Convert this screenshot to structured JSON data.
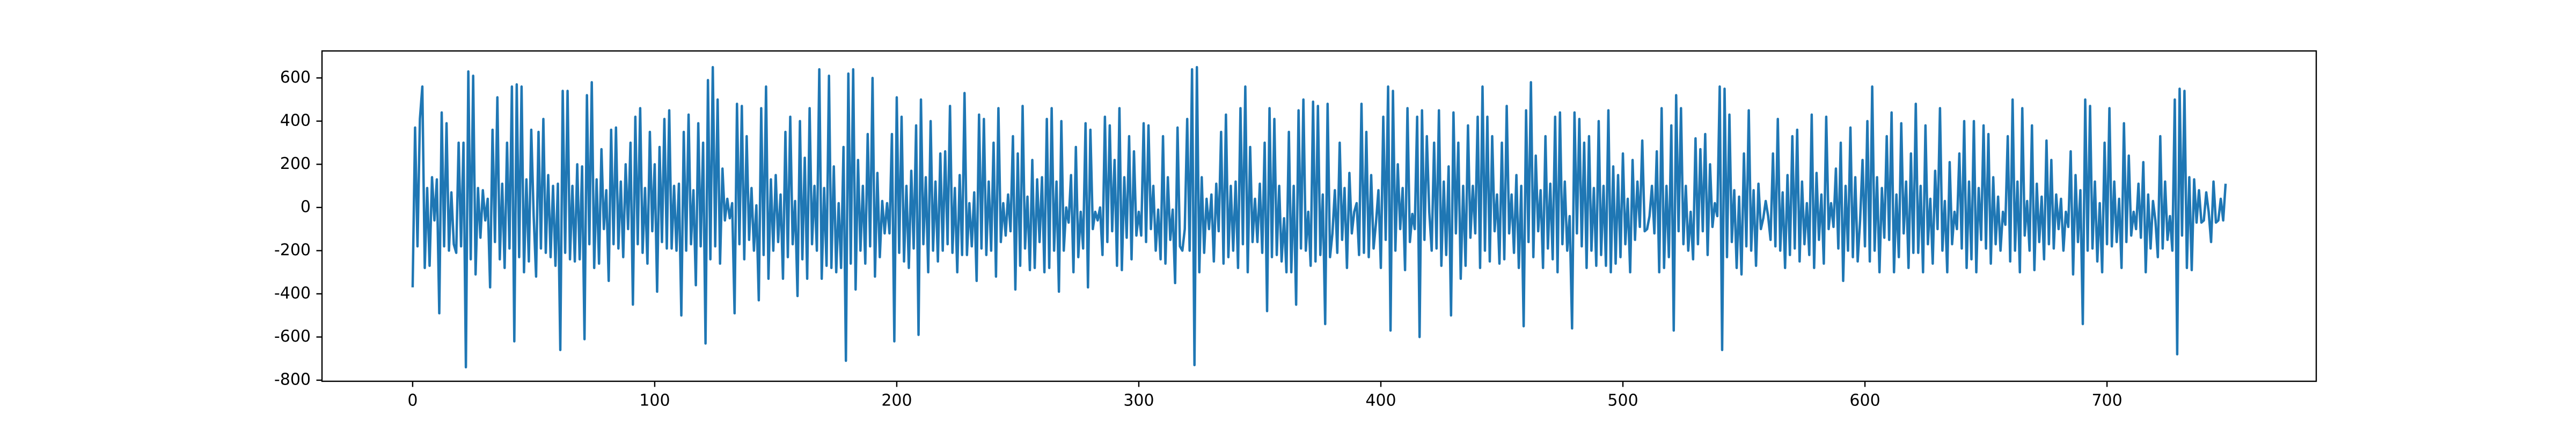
{
  "chart_data": {
    "type": "line",
    "color": "#1f77b4",
    "xlim": [
      -37.45,
      786.45
    ],
    "ylim": [
      -805,
      725
    ],
    "xticks": [
      0,
      100,
      200,
      300,
      400,
      500,
      600,
      700
    ],
    "yticks": [
      -800,
      -600,
      -400,
      -200,
      0,
      200,
      400,
      600
    ],
    "x": [
      0,
      1,
      2,
      3,
      4,
      5,
      6,
      7,
      8,
      9,
      10,
      11,
      12,
      13,
      14,
      15,
      16,
      17,
      18,
      19,
      20,
      21,
      22,
      23,
      24,
      25,
      26,
      27,
      28,
      29,
      30,
      31,
      32,
      33,
      34,
      35,
      36,
      37,
      38,
      39,
      40,
      41,
      42,
      43,
      44,
      45,
      46,
      47,
      48,
      49,
      50,
      51,
      52,
      53,
      54,
      55,
      56,
      57,
      58,
      59,
      60,
      61,
      62,
      63,
      64,
      65,
      66,
      67,
      68,
      69,
      70,
      71,
      72,
      73,
      74,
      75,
      76,
      77,
      78,
      79,
      80,
      81,
      82,
      83,
      84,
      85,
      86,
      87,
      88,
      89,
      90,
      91,
      92,
      93,
      94,
      95,
      96,
      97,
      98,
      99,
      100,
      101,
      102,
      103,
      104,
      105,
      106,
      107,
      108,
      109,
      110,
      111,
      112,
      113,
      114,
      115,
      116,
      117,
      118,
      119,
      120,
      121,
      122,
      123,
      124,
      125,
      126,
      127,
      128,
      129,
      130,
      131,
      132,
      133,
      134,
      135,
      136,
      137,
      138,
      139,
      140,
      141,
      142,
      143,
      144,
      145,
      146,
      147,
      148,
      149,
      150,
      151,
      152,
      153,
      154,
      155,
      156,
      157,
      158,
      159,
      160,
      161,
      162,
      163,
      164,
      165,
      166,
      167,
      168,
      169,
      170,
      171,
      172,
      173,
      174,
      175,
      176,
      177,
      178,
      179,
      180,
      181,
      182,
      183,
      184,
      185,
      186,
      187,
      188,
      189,
      190,
      191,
      192,
      193,
      194,
      195,
      196,
      197,
      198,
      199,
      200,
      201,
      202,
      203,
      204,
      205,
      206,
      207,
      208,
      209,
      210,
      211,
      212,
      213,
      214,
      215,
      216,
      217,
      218,
      219,
      220,
      221,
      222,
      223,
      224,
      225,
      226,
      227,
      228,
      229,
      230,
      231,
      232,
      233,
      234,
      235,
      236,
      237,
      238,
      239,
      240,
      241,
      242,
      243,
      244,
      245,
      246,
      247,
      248,
      249,
      250,
      251,
      252,
      253,
      254,
      255,
      256,
      257,
      258,
      259,
      260,
      261,
      262,
      263,
      264,
      265,
      266,
      267,
      268,
      269,
      270,
      271,
      272,
      273,
      274,
      275,
      276,
      277,
      278,
      279,
      280,
      281,
      282,
      283,
      284,
      285,
      286,
      287,
      288,
      289,
      290,
      291,
      292,
      293,
      294,
      295,
      296,
      297,
      298,
      299,
      300,
      301,
      302,
      303,
      304,
      305,
      306,
      307,
      308,
      309,
      310,
      311,
      312,
      313,
      314,
      315,
      316,
      317,
      318,
      319,
      320,
      321,
      322,
      323,
      324,
      325,
      326,
      327,
      328,
      329,
      330,
      331,
      332,
      333,
      334,
      335,
      336,
      337,
      338,
      339,
      340,
      341,
      342,
      343,
      344,
      345,
      346,
      347,
      348,
      349,
      350,
      351,
      352,
      353,
      354,
      355,
      356,
      357,
      358,
      359,
      360,
      361,
      362,
      363,
      364,
      365,
      366,
      367,
      368,
      369,
      370,
      371,
      372,
      373,
      374,
      375,
      376,
      377,
      378,
      379,
      380,
      381,
      382,
      383,
      384,
      385,
      386,
      387,
      388,
      389,
      390,
      391,
      392,
      393,
      394,
      395,
      396,
      397,
      398,
      399,
      400,
      401,
      402,
      403,
      404,
      405,
      406,
      407,
      408,
      409,
      410,
      411,
      412,
      413,
      414,
      415,
      416,
      417,
      418,
      419,
      420,
      421,
      422,
      423,
      424,
      425,
      426,
      427,
      428,
      429,
      430,
      431,
      432,
      433,
      434,
      435,
      436,
      437,
      438,
      439,
      440,
      441,
      442,
      443,
      444,
      445,
      446,
      447,
      448,
      449,
      450,
      451,
      452,
      453,
      454,
      455,
      456,
      457,
      458,
      459,
      460,
      461,
      462,
      463,
      464,
      465,
      466,
      467,
      468,
      469,
      470,
      471,
      472,
      473,
      474,
      475,
      476,
      477,
      478,
      479,
      480,
      481,
      482,
      483,
      484,
      485,
      486,
      487,
      488,
      489,
      490,
      491,
      492,
      493,
      494,
      495,
      496,
      497,
      498,
      499,
      500,
      501,
      502,
      503,
      504,
      505,
      506,
      507,
      508,
      509,
      510,
      511,
      512,
      513,
      514,
      515,
      516,
      517,
      518,
      519,
      520,
      521,
      522,
      523,
      524,
      525,
      526,
      527,
      528,
      529,
      530,
      531,
      532,
      533,
      534,
      535,
      536,
      537,
      538,
      539,
      540,
      541,
      542,
      543,
      544,
      545,
      546,
      547,
      548,
      549,
      550,
      551,
      552,
      553,
      554,
      555,
      556,
      557,
      558,
      559,
      560,
      561,
      562,
      563,
      564,
      565,
      566,
      567,
      568,
      569,
      570,
      571,
      572,
      573,
      574,
      575,
      576,
      577,
      578,
      579,
      580,
      581,
      582,
      583,
      584,
      585,
      586,
      587,
      588,
      589,
      590,
      591,
      592,
      593,
      594,
      595,
      596,
      597,
      598,
      599,
      600,
      601,
      602,
      603,
      604,
      605,
      606,
      607,
      608,
      609,
      610,
      611,
      612,
      613,
      614,
      615,
      616,
      617,
      618,
      619,
      620,
      621,
      622,
      623,
      624,
      625,
      626,
      627,
      628,
      629,
      630,
      631,
      632,
      633,
      634,
      635,
      636,
      637,
      638,
      639,
      640,
      641,
      642,
      643,
      644,
      645,
      646,
      647,
      648,
      649,
      650,
      651,
      652,
      653,
      654,
      655,
      656,
      657,
      658,
      659,
      660,
      661,
      662,
      663,
      664,
      665,
      666,
      667,
      668,
      669,
      670,
      671,
      672,
      673,
      674,
      675,
      676,
      677,
      678,
      679,
      680,
      681,
      682,
      683,
      684,
      685,
      686,
      687,
      688,
      689,
      690,
      691,
      692,
      693,
      694,
      695,
      696,
      697,
      698,
      699,
      700,
      701,
      702,
      703,
      704,
      705,
      706,
      707,
      708,
      709,
      710,
      711,
      712,
      713,
      714,
      715,
      716,
      717,
      718,
      719,
      720,
      721,
      722,
      723,
      724,
      725,
      726,
      727,
      728,
      729,
      730,
      731,
      732,
      733,
      734,
      735,
      736,
      737,
      738,
      739,
      740,
      741,
      742,
      743,
      744,
      745,
      746,
      747,
      748,
      749
    ],
    "values": [
      -370,
      370,
      -180,
      410,
      560,
      -280,
      90,
      -270,
      140,
      -60,
      130,
      -490,
      440,
      -180,
      390,
      -200,
      70,
      -170,
      -210,
      300,
      -180,
      300,
      -740,
      630,
      -240,
      610,
      -310,
      90,
      -140,
      80,
      -60,
      40,
      -370,
      360,
      -160,
      510,
      -240,
      110,
      -280,
      300,
      -190,
      560,
      -620,
      570,
      -230,
      560,
      -300,
      130,
      -250,
      360,
      -40,
      -320,
      350,
      -190,
      410,
      -210,
      150,
      -230,
      100,
      -270,
      110,
      -660,
      540,
      -210,
      540,
      -240,
      100,
      -250,
      200,
      -240,
      190,
      -610,
      520,
      -170,
      580,
      -280,
      130,
      -260,
      270,
      -100,
      80,
      -340,
      360,
      -170,
      370,
      -190,
      120,
      -230,
      200,
      -100,
      300,
      -450,
      420,
      -170,
      460,
      -210,
      90,
      -260,
      350,
      -110,
      200,
      -390,
      280,
      -160,
      410,
      -190,
      450,
      -190,
      100,
      -200,
      110,
      -500,
      350,
      -200,
      430,
      -170,
      80,
      -360,
      390,
      -180,
      300,
      -630,
      590,
      -240,
      650,
      -180,
      500,
      -260,
      180,
      -60,
      40,
      -50,
      20,
      -490,
      480,
      -170,
      470,
      -240,
      330,
      -150,
      90,
      -200,
      10,
      -430,
      460,
      -220,
      560,
      -330,
      130,
      -200,
      150,
      -160,
      60,
      -330,
      350,
      -230,
      420,
      -170,
      30,
      -410,
      400,
      -240,
      230,
      -330,
      460,
      -170,
      100,
      -200,
      640,
      -330,
      90,
      -270,
      610,
      -280,
      190,
      -300,
      20,
      -280,
      280,
      -710,
      620,
      -260,
      640,
      -380,
      220,
      -200,
      100,
      -260,
      340,
      -180,
      600,
      -320,
      160,
      -230,
      30,
      -120,
      20,
      -120,
      340,
      -620,
      510,
      -210,
      420,
      -250,
      100,
      -280,
      170,
      -190,
      380,
      -590,
      500,
      -170,
      140,
      -300,
      400,
      -200,
      120,
      -250,
      250,
      -200,
      260,
      -170,
      470,
      -210,
      90,
      -300,
      150,
      -220,
      530,
      -220,
      20,
      -180,
      70,
      -340,
      430,
      -190,
      410,
      -220,
      120,
      -200,
      300,
      -320,
      460,
      -160,
      20,
      -130,
      60,
      -110,
      330,
      -380,
      250,
      -270,
      470,
      -190,
      50,
      -290,
      220,
      -280,
      130,
      -160,
      140,
      -300,
      410,
      -280,
      460,
      -200,
      120,
      -390,
      400,
      -200,
      0,
      -70,
      150,
      -300,
      280,
      -230,
      -20,
      -190,
      390,
      -370,
      360,
      -100,
      -20,
      -60,
      0,
      -220,
      420,
      -160,
      380,
      -110,
      220,
      -270,
      460,
      -290,
      140,
      -140,
      330,
      -240,
      260,
      -130,
      -20,
      -130,
      390,
      -160,
      380,
      -100,
      100,
      -200,
      -10,
      -240,
      330,
      -260,
      140,
      -150,
      -10,
      -350,
      370,
      -180,
      -200,
      -100,
      410,
      -200,
      640,
      -730,
      650,
      -300,
      140,
      -210,
      40,
      -100,
      60,
      -250,
      110,
      -110,
      350,
      -260,
      430,
      -230,
      100,
      -200,
      120,
      -280,
      460,
      -170,
      560,
      -300,
      280,
      -160,
      40,
      -160,
      110,
      -210,
      300,
      -480,
      460,
      -230,
      410,
      -220,
      100,
      -250,
      -50,
      -300,
      350,
      -300,
      100,
      -450,
      450,
      -190,
      500,
      -200,
      -20,
      -270,
      490,
      -250,
      470,
      -220,
      60,
      -540,
      480,
      -230,
      -120,
      80,
      -210,
      300,
      -150,
      90,
      -280,
      160,
      -120,
      -20,
      20,
      -220,
      480,
      -210,
      350,
      -230,
      150,
      -190,
      -70,
      80,
      -280,
      420,
      -150,
      560,
      -570,
      540,
      -200,
      200,
      -100,
      90,
      -290,
      460,
      -160,
      -30,
      -100,
      420,
      -600,
      450,
      -150,
      330,
      -20,
      -200,
      300,
      -190,
      450,
      -270,
      120,
      -220,
      190,
      -500,
      440,
      -120,
      300,
      -330,
      100,
      -270,
      380,
      -140,
      100,
      -120,
      420,
      -280,
      560,
      -200,
      420,
      -250,
      330,
      -110,
      60,
      -260,
      300,
      -240,
      470,
      -120,
      60,
      -210,
      150,
      -280,
      100,
      -550,
      450,
      -160,
      580,
      -230,
      240,
      -110,
      80,
      -280,
      330,
      -190,
      110,
      -240,
      420,
      -300,
      440,
      -170,
      120,
      -200,
      -40,
      -560,
      440,
      -120,
      410,
      -180,
      300,
      -280,
      330,
      -200,
      90,
      -270,
      400,
      -220,
      100,
      -270,
      450,
      -300,
      190,
      -260,
      150,
      -230,
      250,
      -170,
      40,
      -300,
      220,
      -150,
      120,
      -90,
      310,
      -110,
      -100,
      -40,
      100,
      -120,
      260,
      -300,
      460,
      -280,
      100,
      -230,
      380,
      -570,
      520,
      -110,
      460,
      -170,
      100,
      -200,
      -20,
      -240,
      320,
      -170,
      270,
      -110,
      340,
      -220,
      200,
      -90,
      20,
      -40,
      560,
      -660,
      550,
      -230,
      430,
      -160,
      80,
      -280,
      50,
      -310,
      250,
      -180,
      450,
      -200,
      80,
      -270,
      110,
      -100,
      -50,
      30,
      -40,
      -150,
      250,
      -180,
      410,
      -200,
      70,
      -280,
      150,
      -220,
      330,
      -190,
      360,
      -250,
      120,
      -170,
      20,
      -220,
      430,
      -280,
      160,
      -150,
      60,
      -260,
      420,
      -100,
      20,
      -90,
      180,
      -190,
      300,
      -340,
      100,
      -200,
      370,
      -230,
      140,
      -250,
      -60,
      220,
      -180,
      400,
      -250,
      560,
      -200,
      140,
      -300,
      90,
      -140,
      330,
      -150,
      440,
      -300,
      60,
      -230,
      390,
      -120,
      120,
      -280,
      250,
      -210,
      480,
      -210,
      100,
      -300,
      380,
      -170,
      40,
      -260,
      170,
      -100,
      460,
      -200,
      30,
      -300,
      210,
      -170,
      -20,
      -100,
      250,
      -190,
      400,
      -280,
      120,
      -240,
      400,
      -300,
      90,
      -150,
      380,
      -190,
      340,
      -260,
      140,
      -170,
      50,
      -200,
      -20,
      -80,
      330,
      -250,
      500,
      -200,
      120,
      -300,
      460,
      -130,
      30,
      -200,
      380,
      -290,
      110,
      -160,
      50,
      -240,
      310,
      -170,
      220,
      -190,
      60,
      -100,
      40,
      -200,
      -20,
      -90,
      260,
      -310,
      150,
      -160,
      80,
      -540,
      500,
      -200,
      470,
      -190,
      120,
      -250,
      20,
      -300,
      300,
      -170,
      460,
      -180,
      120,
      -160,
      40,
      -280,
      390,
      -160,
      240,
      -130,
      -20,
      -100,
      110,
      -140,
      210,
      -300,
      60,
      -190,
      30,
      -60,
      -230,
      330,
      -190,
      120,
      -150,
      -40,
      -200,
      500,
      -680,
      550,
      -130,
      540,
      -280,
      140,
      -290,
      130,
      -70,
      80,
      -70,
      -60,
      70,
      -20,
      -160,
      120,
      -70,
      -60,
      40,
      -60,
      110
    ]
  }
}
